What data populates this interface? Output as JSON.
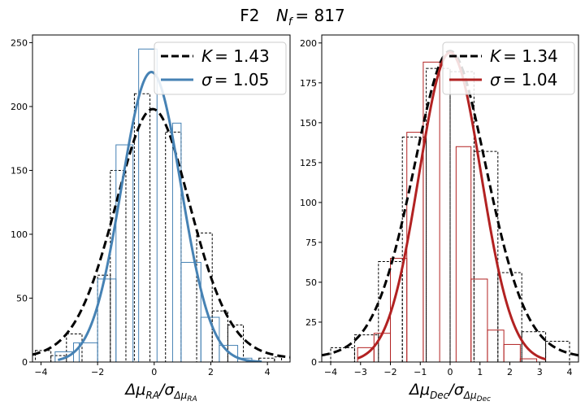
{
  "figure": {
    "title_text": "F2",
    "title_nf": "N",
    "title_nf_sub": "f",
    "title_nf_value": "= 817"
  },
  "chart_data": [
    {
      "type": "bar",
      "id": "ra",
      "xlabel": {
        "main": "Δμ",
        "sub1": "RA",
        "div": "/σ",
        "sub2": "Δμ",
        "sub3": "RA"
      },
      "ylabel": "",
      "xlim": [
        -4.3,
        4.8
      ],
      "ylim": [
        0,
        256
      ],
      "xticks": [
        -4,
        -2,
        0,
        2,
        4
      ],
      "yticks": [
        0,
        50,
        100,
        150,
        200,
        250
      ],
      "grid": false,
      "legend_position": "top-right",
      "color": "#4682b4",
      "series": [
        {
          "name": "K = 1.43",
          "legend_sym": "K",
          "legend_val": "= 1.43",
          "kind": "dashed-hist-and-fit",
          "bin_edges": [
            -4.2,
            -3.65,
            -3.1,
            -2.55,
            -2.0,
            -1.55,
            -1.0,
            -0.7,
            -0.15,
            0.4,
            0.95,
            1.5,
            2.05,
            2.6,
            3.15,
            3.7,
            4.25,
            4.5
          ],
          "counts": [
            9,
            5,
            22,
            0,
            68,
            150,
            0,
            210,
            0,
            180,
            0,
            101,
            40,
            29,
            0,
            3,
            4
          ],
          "fit_peak": 198,
          "fit_center": -0.05,
          "fit_scale": 1.4
        },
        {
          "name": "σ = 1.05",
          "legend_sym": "σ",
          "legend_val": "= 1.05",
          "kind": "solid-hist-and-fit",
          "bin_edges": [
            -3.5,
            -2.85,
            -2.65,
            -2.0,
            -1.35,
            -0.75,
            -0.55,
            0.1,
            0.65,
            0.95,
            1.65,
            2.3,
            2.95,
            3.45
          ],
          "counts": [
            8,
            15,
            15,
            65,
            170,
            0,
            245,
            0,
            187,
            78,
            35,
            13,
            3
          ],
          "fit_peak": 227,
          "fit_center": -0.1,
          "fit_sigma": 1.05,
          "fit_range": [
            -3.4,
            3.8
          ]
        }
      ]
    },
    {
      "type": "bar",
      "id": "dec",
      "xlabel": {
        "main": "Δμ",
        "sub1": "Dec",
        "div": "/σ",
        "sub2": "Δμ",
        "sub3": "Dec"
      },
      "ylabel": "",
      "xlim": [
        -4.3,
        4.3
      ],
      "ylim": [
        0,
        205
      ],
      "xticks": [
        -4,
        -3,
        -2,
        -1,
        0,
        1,
        2,
        3,
        4
      ],
      "yticks": [
        0,
        25,
        50,
        75,
        100,
        125,
        150,
        175,
        200
      ],
      "grid": false,
      "legend_position": "top-right",
      "color": "#b22222",
      "series": [
        {
          "name": "K = 1.34",
          "legend_sym": "K",
          "legend_val": "= 1.34",
          "kind": "dashed-hist-and-fit",
          "bin_edges": [
            -4.0,
            -3.2,
            -2.4,
            -1.6,
            -0.8,
            0.0,
            0.8,
            1.6,
            2.4,
            3.2,
            4.0
          ],
          "counts": [
            9,
            17,
            63,
            141,
            184,
            182,
            132,
            56,
            19,
            13
          ],
          "fit_peak": 195,
          "fit_center": 0.0,
          "fit_scale": 1.3
        },
        {
          "name": "σ = 1.04",
          "legend_sym": "σ",
          "legend_val": "= 1.04",
          "kind": "solid-hist-and-fit",
          "bin_edges": [
            -3.1,
            -2.55,
            -2.0,
            -1.45,
            -0.9,
            -0.35,
            0.2,
            0.7,
            1.25,
            1.8,
            2.35,
            2.9
          ],
          "counts": [
            9,
            18,
            65,
            144,
            188,
            0,
            135,
            52,
            20,
            11,
            2
          ],
          "fit_peak": 194,
          "fit_center": 0.0,
          "fit_sigma": 1.04,
          "fit_range": [
            -3.1,
            3.2
          ]
        }
      ]
    }
  ]
}
